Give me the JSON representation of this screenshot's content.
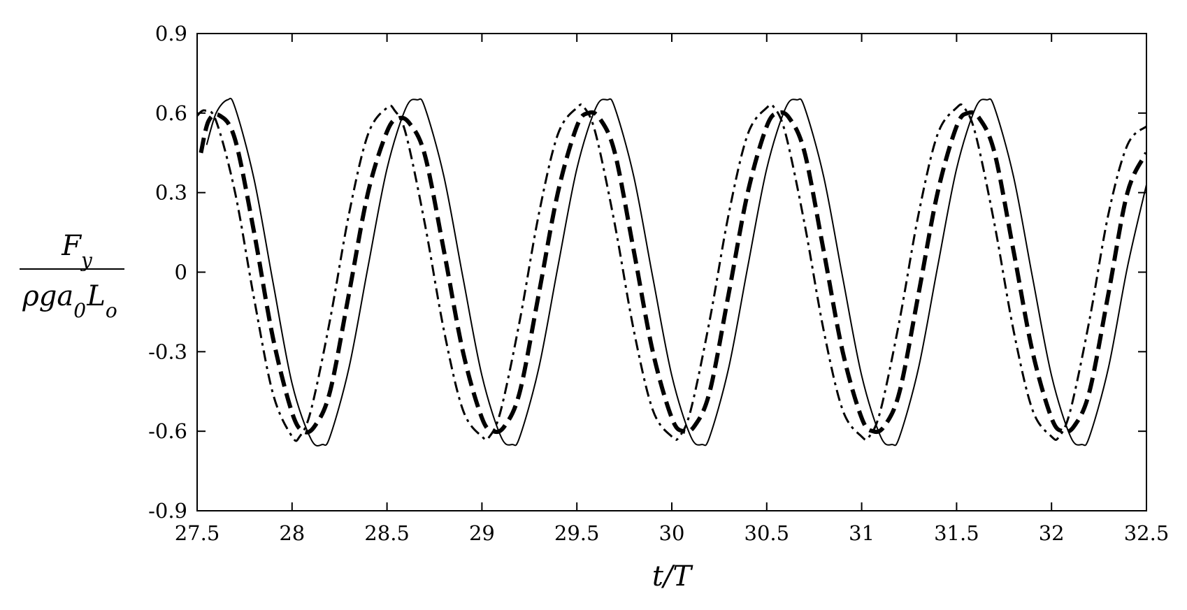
{
  "chart_data": {
    "type": "line",
    "xlabel": "t/T",
    "ylabel": {
      "numerator": "F",
      "numerator_sub": "y",
      "denominator": "ρga",
      "denominator_sub": "0",
      "denominator_tail": "L",
      "denominator_tail_sub": "o"
    },
    "xlim": [
      27.5,
      32.5
    ],
    "ylim": [
      -0.9,
      0.9
    ],
    "xticks": [
      27.5,
      28,
      28.5,
      29,
      29.5,
      30,
      30.5,
      31,
      31.5,
      32,
      32.5
    ],
    "xtick_labels": [
      "27.5",
      "28",
      "28.5",
      "29",
      "29.5",
      "30",
      "30.5",
      "31",
      "31.5",
      "32",
      "32.5"
    ],
    "yticks": [
      0.9,
      0.6,
      0.3,
      0,
      -0.3,
      -0.6,
      -0.9
    ],
    "ytick_labels": [
      "0.9",
      "0.6",
      "0.3",
      "0",
      "-0.3",
      "-0.6",
      "-0.9"
    ],
    "grid": false,
    "legend": "none",
    "color": "#000000",
    "series": [
      {
        "style": "solid",
        "line_width": 2,
        "x": [
          27.55,
          27.6,
          27.66,
          27.7,
          27.8,
          27.9,
          28.0,
          28.1,
          28.16,
          28.2,
          28.3,
          28.4,
          28.5,
          28.6,
          28.66,
          28.7,
          28.8,
          28.9,
          29.0,
          29.1,
          29.16,
          29.2,
          29.3,
          29.4,
          29.5,
          29.6,
          29.66,
          29.7,
          29.8,
          29.9,
          30.0,
          30.1,
          30.16,
          30.2,
          30.3,
          30.4,
          30.5,
          30.6,
          30.66,
          30.7,
          30.8,
          30.9,
          31.0,
          31.1,
          31.16,
          31.2,
          31.3,
          31.4,
          31.5,
          31.6,
          31.66,
          31.7,
          31.8,
          31.9,
          32.0,
          32.1,
          32.16,
          32.2,
          32.3,
          32.4,
          32.5
        ],
        "y": [
          0.48,
          0.6,
          0.65,
          0.62,
          0.35,
          -0.04,
          -0.42,
          -0.63,
          -0.65,
          -0.62,
          -0.36,
          0.02,
          0.39,
          0.62,
          0.65,
          0.62,
          0.36,
          -0.02,
          -0.39,
          -0.62,
          -0.65,
          -0.62,
          -0.36,
          0.02,
          0.39,
          0.62,
          0.65,
          0.62,
          0.36,
          -0.02,
          -0.39,
          -0.62,
          -0.65,
          -0.62,
          -0.36,
          0.02,
          0.39,
          0.62,
          0.65,
          0.62,
          0.36,
          -0.02,
          -0.39,
          -0.62,
          -0.65,
          -0.62,
          -0.36,
          0.02,
          0.39,
          0.62,
          0.65,
          0.62,
          0.36,
          -0.02,
          -0.39,
          -0.62,
          -0.65,
          -0.62,
          -0.36,
          0.02,
          0.33
        ]
      },
      {
        "style": "thick-dashed",
        "line_width": 6,
        "x": [
          27.52,
          27.56,
          27.62,
          27.7,
          27.8,
          27.9,
          28.0,
          28.06,
          28.12,
          28.2,
          28.3,
          28.4,
          28.5,
          28.56,
          28.62,
          28.7,
          28.8,
          28.9,
          29.0,
          29.06,
          29.12,
          29.2,
          29.3,
          29.4,
          29.5,
          29.56,
          29.62,
          29.7,
          29.8,
          29.9,
          30.0,
          30.06,
          30.12,
          30.2,
          30.3,
          30.4,
          30.5,
          30.56,
          30.62,
          30.7,
          30.8,
          30.9,
          31.0,
          31.06,
          31.12,
          31.2,
          31.3,
          31.4,
          31.5,
          31.56,
          31.62,
          31.7,
          31.8,
          31.9,
          32.0,
          32.06,
          32.12,
          32.2,
          32.3,
          32.4,
          32.5
        ],
        "y": [
          0.45,
          0.57,
          0.59,
          0.5,
          0.15,
          -0.25,
          -0.53,
          -0.6,
          -0.58,
          -0.45,
          -0.08,
          0.3,
          0.53,
          0.58,
          0.56,
          0.44,
          0.08,
          -0.3,
          -0.55,
          -0.6,
          -0.58,
          -0.45,
          -0.08,
          0.3,
          0.55,
          0.6,
          0.58,
          0.45,
          0.08,
          -0.3,
          -0.55,
          -0.6,
          -0.58,
          -0.45,
          -0.08,
          0.3,
          0.55,
          0.6,
          0.58,
          0.45,
          0.08,
          -0.3,
          -0.55,
          -0.6,
          -0.58,
          -0.45,
          -0.08,
          0.3,
          0.55,
          0.6,
          0.58,
          0.45,
          0.08,
          -0.3,
          -0.55,
          -0.6,
          -0.58,
          -0.45,
          -0.08,
          0.3,
          0.45
        ]
      },
      {
        "style": "dash-dot",
        "line_width": 3,
        "x": [
          27.5,
          27.54,
          27.6,
          27.7,
          27.8,
          27.9,
          28.0,
          28.04,
          28.1,
          28.2,
          28.3,
          28.4,
          28.5,
          28.54,
          28.6,
          28.7,
          28.8,
          28.9,
          29.0,
          29.04,
          29.1,
          29.2,
          29.3,
          29.4,
          29.5,
          29.54,
          29.6,
          29.7,
          29.8,
          29.9,
          30.0,
          30.04,
          30.1,
          30.2,
          30.3,
          30.4,
          30.5,
          30.54,
          30.6,
          30.7,
          30.8,
          30.9,
          31.0,
          31.04,
          31.1,
          31.2,
          31.3,
          31.4,
          31.5,
          31.54,
          31.6,
          31.7,
          31.8,
          31.9,
          32.0,
          32.04,
          32.1,
          32.2,
          32.3,
          32.4,
          32.5
        ],
        "y": [
          0.59,
          0.61,
          0.57,
          0.3,
          -0.1,
          -0.46,
          -0.62,
          -0.62,
          -0.52,
          -0.18,
          0.22,
          0.52,
          0.62,
          0.61,
          0.52,
          0.18,
          -0.22,
          -0.52,
          -0.62,
          -0.62,
          -0.52,
          -0.18,
          0.22,
          0.52,
          0.62,
          0.62,
          0.52,
          0.18,
          -0.22,
          -0.52,
          -0.62,
          -0.62,
          -0.52,
          -0.18,
          0.22,
          0.52,
          0.62,
          0.62,
          0.52,
          0.18,
          -0.22,
          -0.52,
          -0.62,
          -0.62,
          -0.52,
          -0.18,
          0.22,
          0.52,
          0.62,
          0.62,
          0.52,
          0.18,
          -0.22,
          -0.52,
          -0.62,
          -0.62,
          -0.52,
          -0.18,
          0.22,
          0.48,
          0.55
        ]
      }
    ]
  }
}
